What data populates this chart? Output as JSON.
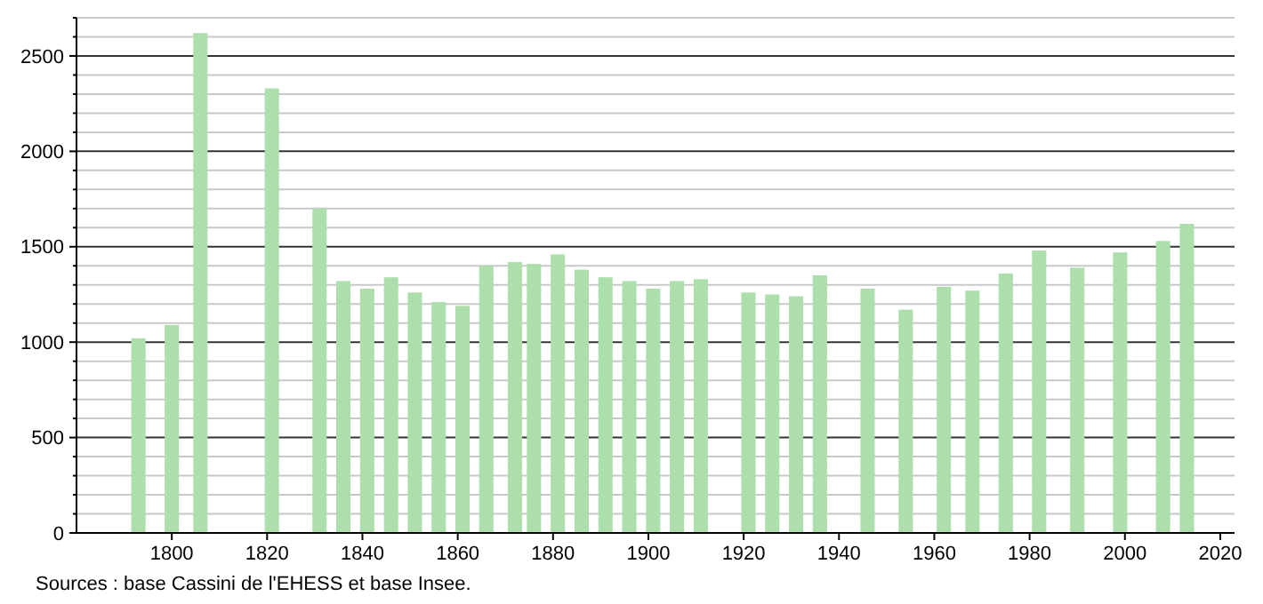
{
  "chart_data": {
    "type": "bar",
    "x": [
      1793,
      1800,
      1806,
      1821,
      1831,
      1836,
      1841,
      1846,
      1851,
      1856,
      1861,
      1866,
      1872,
      1876,
      1881,
      1886,
      1891,
      1896,
      1901,
      1906,
      1911,
      1921,
      1926,
      1931,
      1936,
      1946,
      1954,
      1962,
      1968,
      1975,
      1982,
      1990,
      1999,
      2008,
      2013
    ],
    "values": [
      1020,
      1090,
      2620,
      2330,
      1700,
      1320,
      1280,
      1340,
      1260,
      1210,
      1190,
      1400,
      1420,
      1410,
      1460,
      1380,
      1340,
      1320,
      1280,
      1320,
      1330,
      1260,
      1250,
      1240,
      1350,
      1280,
      1170,
      1290,
      1270,
      1360,
      1480,
      1390,
      1470,
      1530,
      1620
    ],
    "color": "#addfad",
    "xlim": [
      1780,
      2023
    ],
    "xticks": [
      1800,
      1820,
      1840,
      1860,
      1880,
      1900,
      1920,
      1940,
      1960,
      1980,
      2000,
      2020
    ],
    "ylim": [
      0,
      2700
    ],
    "yticks": [
      0,
      {
        "value": 100,
        "label": null
      },
      {
        "value": 200,
        "label": null
      },
      {
        "value": 300,
        "label": null
      },
      {
        "value": 400,
        "label": null
      },
      500,
      {
        "value": 600,
        "label": null
      },
      {
        "value": 700,
        "label": null
      },
      {
        "value": 800,
        "label": null
      },
      {
        "value": 900,
        "label": null
      },
      1000,
      {
        "value": 1100,
        "label": null
      },
      {
        "value": 1200,
        "label": null
      },
      {
        "value": 1300,
        "label": null
      },
      {
        "value": 1400,
        "label": null
      },
      1500,
      {
        "value": 1600,
        "label": null
      },
      {
        "value": 1700,
        "label": null
      },
      {
        "value": 1800,
        "label": null
      },
      {
        "value": 1900,
        "label": null
      },
      2000,
      {
        "value": 2100,
        "label": null
      },
      {
        "value": 2200,
        "label": null
      },
      {
        "value": 2300,
        "label": null
      },
      {
        "value": 2400,
        "label": null
      },
      2500,
      {
        "value": 2600,
        "label": null
      },
      {
        "value": 2700,
        "label": null
      }
    ],
    "grid": "y",
    "annotations": [
      "Sources : base Cassini de l'EHESS et base Insee."
    ]
  }
}
